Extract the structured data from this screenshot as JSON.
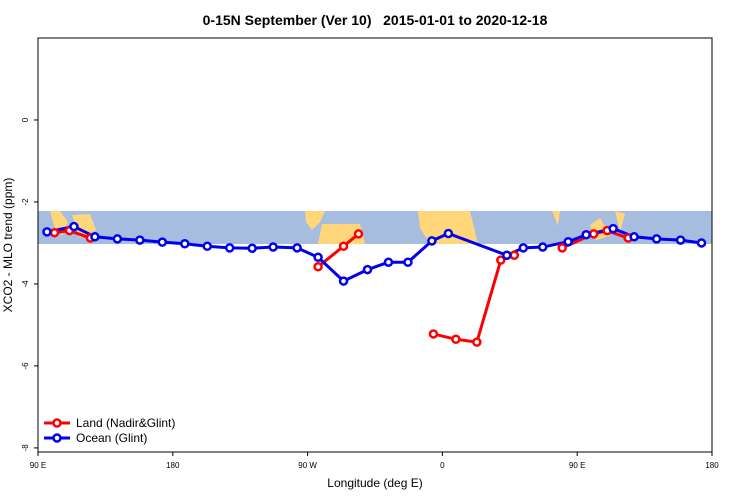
{
  "chart_data": {
    "type": "line",
    "title": "0-15N September (Ver 10)   2015-01-01 to 2020-12-18",
    "xlabel": "Longitude (deg E)",
    "ylabel": "XCO2 - MLO trend (ppm)",
    "xlim": [
      90,
      540
    ],
    "xticks": [
      {
        "value": 90,
        "label": "90 E"
      },
      {
        "value": 180,
        "label": "180"
      },
      {
        "value": 270,
        "label": "90 W"
      },
      {
        "value": 360,
        "label": "0"
      },
      {
        "value": 450,
        "label": "90 E"
      },
      {
        "value": 540,
        "label": "180"
      }
    ],
    "ylim": [
      -8.1,
      2
    ],
    "yticks": [
      -8,
      -6,
      -4,
      -2,
      0
    ],
    "legend": "bottom-left",
    "series": [
      {
        "name": "Land (Nadir&Glint)",
        "color": "#ff0000",
        "x": [
          101,
          111,
          125,
          null,
          277,
          294,
          304,
          null,
          354,
          369,
          383,
          399,
          408,
          null,
          440,
          461,
          470,
          484
        ],
        "values": [
          -2.75,
          -2.7,
          -2.88,
          null,
          -3.58,
          -3.08,
          -2.78,
          null,
          -5.22,
          -5.35,
          -5.42,
          -3.42,
          -3.3,
          null,
          -3.12,
          -2.78,
          -2.7,
          -2.88
        ]
      },
      {
        "name": "Ocean (Glint)",
        "color": "#0000ee",
        "x": [
          96,
          114,
          128,
          143,
          158,
          173,
          188,
          203,
          218,
          233,
          247,
          263,
          277,
          294,
          310,
          324,
          337,
          353,
          364,
          403,
          414,
          427,
          444,
          456,
          474,
          488,
          503,
          519,
          533
        ],
        "values": [
          -2.73,
          -2.6,
          -2.85,
          -2.9,
          -2.93,
          -2.98,
          -3.02,
          -3.08,
          -3.12,
          -3.13,
          -3.1,
          -3.12,
          -3.35,
          -3.93,
          -3.65,
          -3.47,
          -3.47,
          -2.95,
          -2.77,
          -3.3,
          -3.12,
          -3.1,
          -2.97,
          -2.8,
          -2.65,
          -2.85,
          -2.9,
          -2.93,
          -3.0
        ]
      }
    ]
  }
}
